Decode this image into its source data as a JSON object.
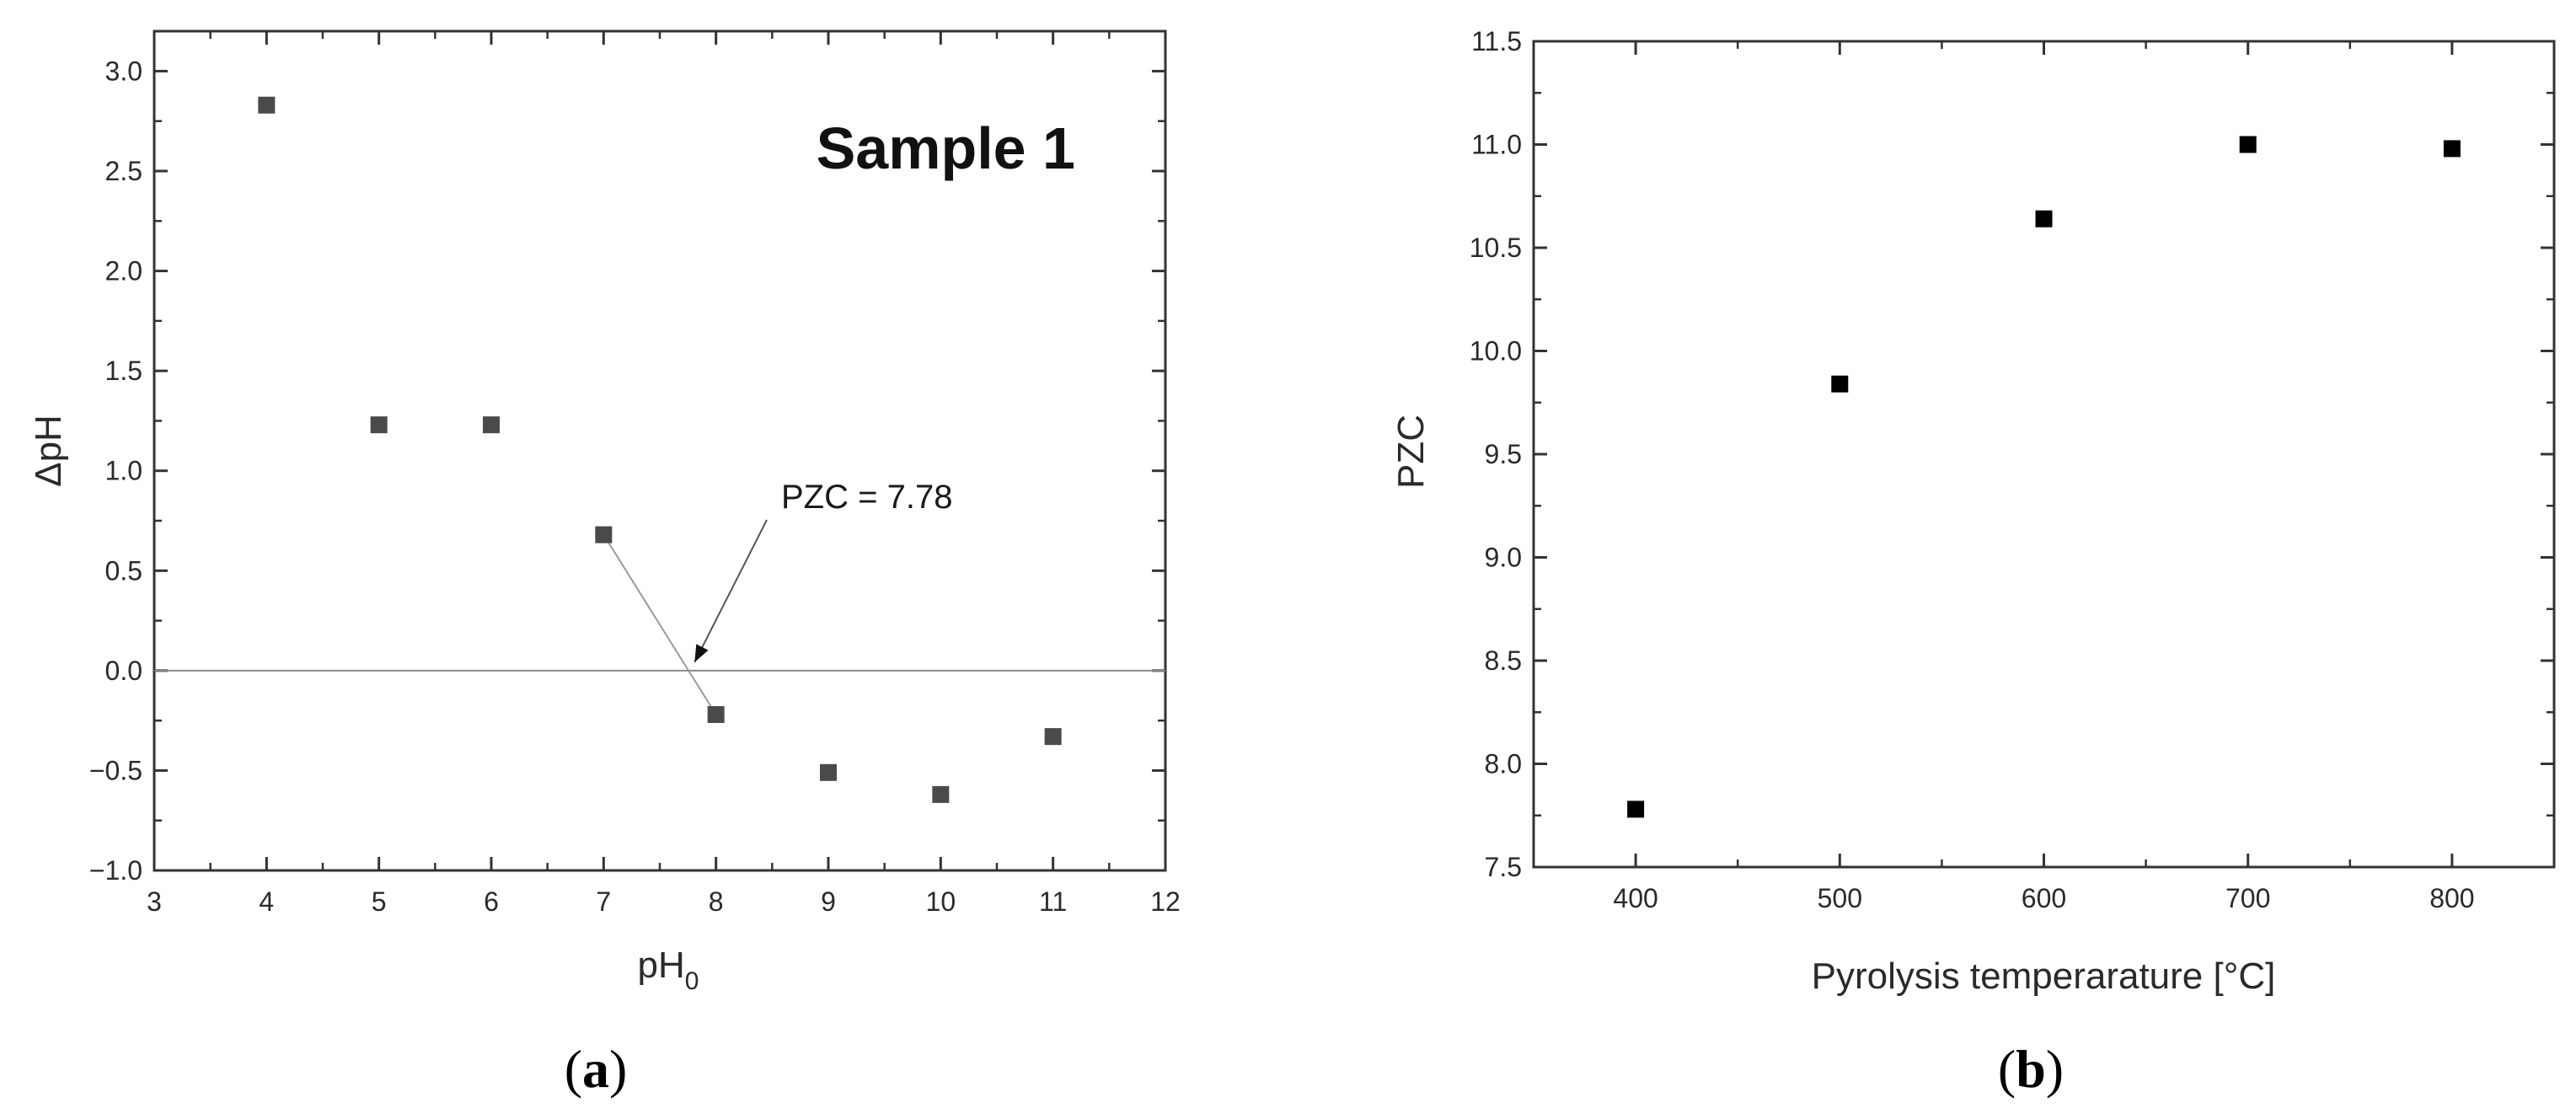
{
  "chart_data": [
    {
      "type": "scatter",
      "panel_label": "a",
      "title": "Sample 1",
      "xlabel": "pH",
      "xlabel_subscript": "0",
      "ylabel": "ΔpH",
      "xlim": [
        3,
        12
      ],
      "ylim": [
        -1.0,
        3.2
      ],
      "xticks": [
        "3",
        "4",
        "5",
        "6",
        "7",
        "8",
        "9",
        "10",
        "11",
        "12"
      ],
      "yticks": [
        "−1.0",
        "−0.5",
        "0.0",
        "0.5",
        "1.0",
        "1.5",
        "2.0",
        "2.5",
        "3.0"
      ],
      "grid": false,
      "reference_line_y": 0,
      "marker_color": "#4a4a4a",
      "series": [
        {
          "x": [
            4,
            5,
            6,
            7,
            8,
            9,
            10,
            11
          ],
          "y": [
            2.83,
            1.23,
            1.23,
            0.68,
            -0.22,
            -0.51,
            -0.62,
            -0.33
          ]
        }
      ],
      "annotation": {
        "text": "PZC = 7.78",
        "x": 7.78,
        "y": 0
      }
    },
    {
      "type": "scatter",
      "panel_label": "b",
      "title": "",
      "xlabel": "Pyrolysis temperarature [°C]",
      "ylabel": "PZC",
      "xlim": [
        350,
        850
      ],
      "ylim": [
        7.5,
        11.5
      ],
      "xticks": [
        "400",
        "500",
        "600",
        "700",
        "800"
      ],
      "yticks": [
        "7.5",
        "8.0",
        "8.5",
        "9.0",
        "9.5",
        "10.0",
        "10.5",
        "11.0",
        "11.5"
      ],
      "grid": false,
      "marker_color": "#000000",
      "series": [
        {
          "x": [
            400,
            500,
            600,
            700,
            800
          ],
          "y": [
            7.78,
            9.84,
            10.64,
            11.0,
            10.98
          ]
        }
      ]
    }
  ],
  "captions": {
    "a": {
      "open": "(",
      "letter": "a",
      "close": ")"
    },
    "b": {
      "open": "(",
      "letter": "b",
      "close": ")"
    }
  }
}
